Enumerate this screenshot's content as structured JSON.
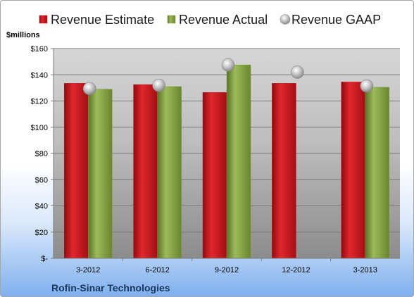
{
  "chart_data": {
    "type": "bar",
    "unit_label": "$millions",
    "company": "Rofin-Sinar Technologies",
    "categories": [
      "3-2012",
      "6-2012",
      "9-2012",
      "12-2012",
      "3-2013"
    ],
    "series": [
      {
        "name": "Revenue Estimate",
        "kind": "bar",
        "color": "#c0141a",
        "values": [
          133.5,
          132.5,
          126.5,
          133.5,
          134.5
        ]
      },
      {
        "name": "Revenue Actual",
        "kind": "bar",
        "color": "#7f9b3d",
        "values": [
          129,
          131,
          147.5,
          null,
          130.5
        ]
      },
      {
        "name": "Revenue GAAP",
        "kind": "marker",
        "color": "#b0b0b0",
        "values": [
          129.5,
          132,
          147.5,
          142,
          131.5
        ]
      }
    ],
    "ylim": [
      0,
      160
    ],
    "yticks": [
      0,
      20,
      40,
      60,
      80,
      100,
      120,
      140,
      160
    ],
    "ytick_labels": [
      "$-",
      "$20",
      "$40",
      "$60",
      "$80",
      "$100",
      "$120",
      "$140",
      "$160"
    ],
    "grid": true,
    "legend_position": "top"
  }
}
